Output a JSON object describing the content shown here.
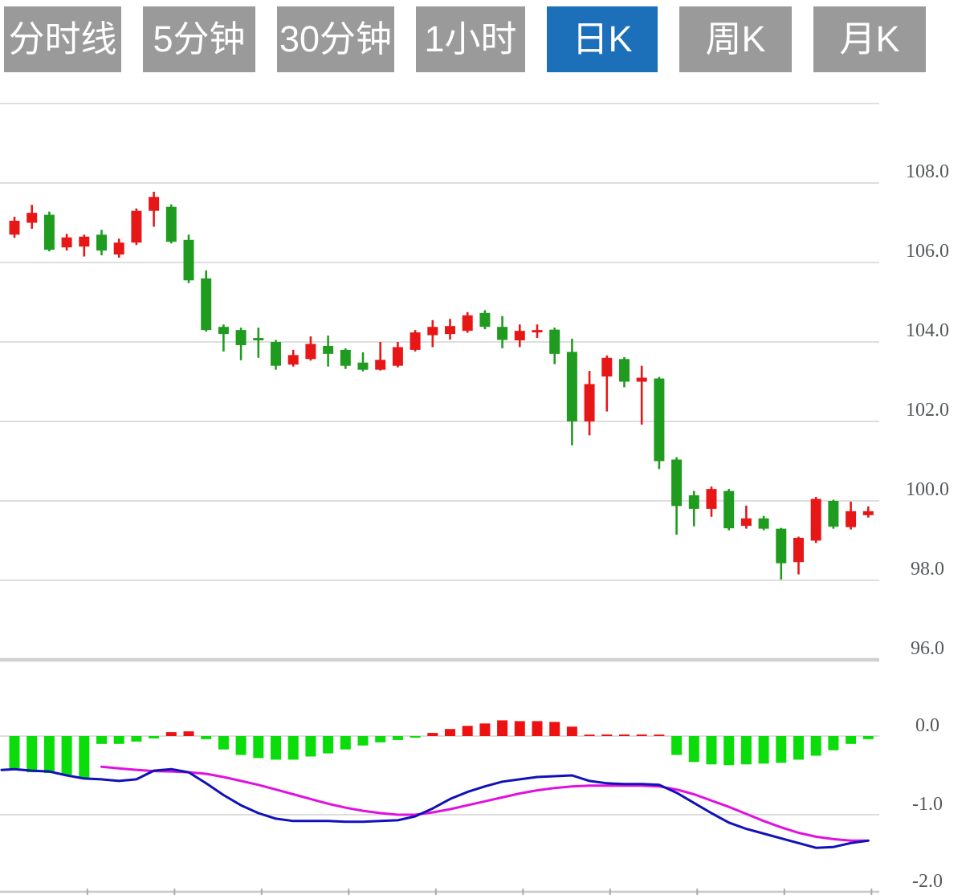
{
  "toolbar": {
    "buttons": [
      {
        "label": "分时线",
        "active": false
      },
      {
        "label": "5分钟",
        "active": false
      },
      {
        "label": "30分钟",
        "active": false
      },
      {
        "label": "1小时",
        "active": false
      },
      {
        "label": "日K",
        "active": true
      },
      {
        "label": "周K",
        "active": false
      },
      {
        "label": "月K",
        "active": false
      }
    ],
    "active_color": "#1c6fb9",
    "inactive_color": "#9a9a9a",
    "text_color": "#ffffff"
  },
  "chart_data": {
    "type": "candlestick",
    "title": "",
    "legend": [],
    "grid": true,
    "axis_position": "right",
    "candle_format": "[open, high, low, close]",
    "price_panel": {
      "gridline_values": [
        110,
        108,
        106,
        104,
        102,
        100,
        98,
        96
      ],
      "axis_labels": [
        {
          "text": "108.0",
          "value": 108
        },
        {
          "text": "106.0",
          "value": 106
        },
        {
          "text": "104.0",
          "value": 104
        },
        {
          "text": "102.0",
          "value": 102
        },
        {
          "text": "100.0",
          "value": 100
        },
        {
          "text": "98.0",
          "value": 98
        },
        {
          "text": "96.0",
          "value": 96
        }
      ],
      "emphasized_gridline_value": 96,
      "ylim": [
        95.5,
        110.5
      ]
    },
    "macd_panel": {
      "gridline_values": [
        0,
        -1,
        -2
      ],
      "axis_labels": [
        {
          "text": "0.0",
          "value": 0
        },
        {
          "text": "-1.0",
          "value": -1
        },
        {
          "text": "-2.0",
          "value": -2
        }
      ],
      "ylim": [
        -2.05,
        0.6
      ]
    },
    "candles": [
      [
        106.7,
        107.15,
        106.62,
        107.05
      ],
      [
        107.0,
        107.45,
        106.85,
        107.25
      ],
      [
        107.2,
        107.28,
        106.28,
        106.32
      ],
      [
        106.38,
        106.72,
        106.3,
        106.63
      ],
      [
        106.4,
        106.7,
        106.15,
        106.65
      ],
      [
        106.7,
        106.82,
        106.18,
        106.3
      ],
      [
        106.2,
        106.6,
        106.12,
        106.5
      ],
      [
        106.5,
        107.36,
        106.44,
        107.3
      ],
      [
        107.3,
        107.78,
        106.9,
        107.65
      ],
      [
        107.4,
        107.46,
        106.48,
        106.52
      ],
      [
        106.57,
        106.7,
        105.48,
        105.55
      ],
      [
        105.6,
        105.8,
        104.26,
        104.3
      ],
      [
        104.38,
        104.44,
        103.76,
        104.2
      ],
      [
        104.3,
        104.36,
        103.54,
        103.92
      ],
      [
        104.1,
        104.36,
        103.6,
        104.04
      ],
      [
        104.0,
        104.05,
        103.3,
        103.4
      ],
      [
        103.43,
        103.8,
        103.38,
        103.67
      ],
      [
        103.57,
        104.14,
        103.53,
        103.95
      ],
      [
        103.9,
        104.16,
        103.38,
        103.7
      ],
      [
        103.8,
        103.84,
        103.32,
        103.4
      ],
      [
        103.48,
        103.74,
        103.26,
        103.3
      ],
      [
        103.3,
        104.0,
        103.28,
        103.55
      ],
      [
        103.4,
        104.0,
        103.36,
        103.87
      ],
      [
        103.8,
        104.3,
        103.76,
        104.24
      ],
      [
        104.17,
        104.55,
        103.87,
        104.38
      ],
      [
        104.2,
        104.58,
        104.06,
        104.4
      ],
      [
        104.28,
        104.75,
        104.23,
        104.67
      ],
      [
        104.73,
        104.8,
        104.32,
        104.38
      ],
      [
        104.38,
        104.65,
        103.84,
        104.05
      ],
      [
        104.04,
        104.44,
        103.87,
        104.28
      ],
      [
        104.24,
        104.44,
        104.1,
        104.3
      ],
      [
        104.31,
        104.36,
        103.44,
        103.7
      ],
      [
        103.75,
        104.08,
        101.4,
        102.0
      ],
      [
        102.0,
        103.27,
        101.65,
        102.94
      ],
      [
        103.13,
        103.66,
        102.25,
        103.6
      ],
      [
        103.57,
        103.62,
        102.86,
        103.0
      ],
      [
        103.0,
        103.4,
        101.92,
        103.1
      ],
      [
        103.08,
        103.12,
        100.8,
        101.0
      ],
      [
        101.04,
        101.1,
        99.15,
        99.87
      ],
      [
        100.14,
        100.25,
        99.36,
        99.8
      ],
      [
        99.8,
        100.36,
        99.6,
        100.3
      ],
      [
        100.25,
        100.3,
        99.26,
        99.31
      ],
      [
        99.37,
        99.88,
        99.3,
        99.56
      ],
      [
        99.56,
        99.62,
        99.26,
        99.3
      ],
      [
        99.3,
        99.32,
        98.02,
        98.43
      ],
      [
        98.46,
        99.1,
        98.15,
        99.07
      ],
      [
        99.0,
        100.1,
        98.94,
        100.05
      ],
      [
        100.0,
        100.03,
        99.3,
        99.35
      ],
      [
        99.34,
        99.98,
        99.28,
        99.74
      ],
      [
        99.64,
        99.86,
        99.58,
        99.74
      ]
    ],
    "macd": {
      "histogram": [
        -0.41,
        -0.46,
        -0.47,
        -0.49,
        -0.54,
        -0.1,
        -0.1,
        -0.07,
        -0.03,
        0.05,
        0.06,
        -0.04,
        -0.17,
        -0.24,
        -0.28,
        -0.3,
        -0.3,
        -0.26,
        -0.22,
        -0.17,
        -0.12,
        -0.08,
        -0.05,
        -0.02,
        0.04,
        0.09,
        0.13,
        0.16,
        0.2,
        0.19,
        0.19,
        0.18,
        0.12,
        0.01,
        0.02,
        0.02,
        0.02,
        0.01,
        -0.24,
        -0.33,
        -0.36,
        -0.37,
        -0.36,
        -0.35,
        -0.34,
        -0.3,
        -0.25,
        -0.18,
        -0.1,
        -0.04
      ],
      "dif": [
        -0.42,
        -0.44,
        -0.45,
        -0.5,
        -0.54,
        -0.55,
        -0.57,
        -0.55,
        -0.44,
        -0.42,
        -0.46,
        -0.6,
        -0.75,
        -0.88,
        -0.98,
        -1.05,
        -1.08,
        -1.08,
        -1.08,
        -1.09,
        -1.09,
        -1.08,
        -1.07,
        -1.02,
        -0.92,
        -0.8,
        -0.71,
        -0.64,
        -0.58,
        -0.55,
        -0.52,
        -0.51,
        -0.5,
        -0.57,
        -0.6,
        -0.61,
        -0.61,
        -0.62,
        -0.72,
        -0.85,
        -0.98,
        -1.1,
        -1.18,
        -1.24,
        -1.3,
        -1.36,
        -1.42,
        -1.41,
        -1.36,
        -1.33
      ],
      "dea": [
        null,
        null,
        null,
        null,
        null,
        -0.39,
        -0.41,
        -0.43,
        -0.445,
        -0.45,
        -0.46,
        -0.48,
        -0.52,
        -0.57,
        -0.62,
        -0.68,
        -0.74,
        -0.8,
        -0.86,
        -0.91,
        -0.95,
        -0.98,
        -1.0,
        -1.0,
        -0.97,
        -0.93,
        -0.88,
        -0.83,
        -0.78,
        -0.73,
        -0.69,
        -0.66,
        -0.64,
        -0.63,
        -0.63,
        -0.63,
        -0.63,
        -0.64,
        -0.68,
        -0.74,
        -0.82,
        -0.9,
        -0.99,
        -1.08,
        -1.16,
        -1.23,
        -1.28,
        -1.31,
        -1.33,
        -1.33
      ]
    },
    "x_axis": {
      "tick_every_n_bars": 5,
      "labels": []
    },
    "colors": {
      "candle_up": "#e81717",
      "candle_down": "#1f9c1f",
      "hist_up": "#ee1111",
      "hist_down": "#0bdd0b",
      "dif_line": "#1111b7",
      "dea_line": "#e011e0",
      "gridline": "#dedede",
      "gridline_emphasized": "#d0d0d0",
      "axis_line": "#c8c8c8",
      "axis_text": "#54585a"
    }
  }
}
